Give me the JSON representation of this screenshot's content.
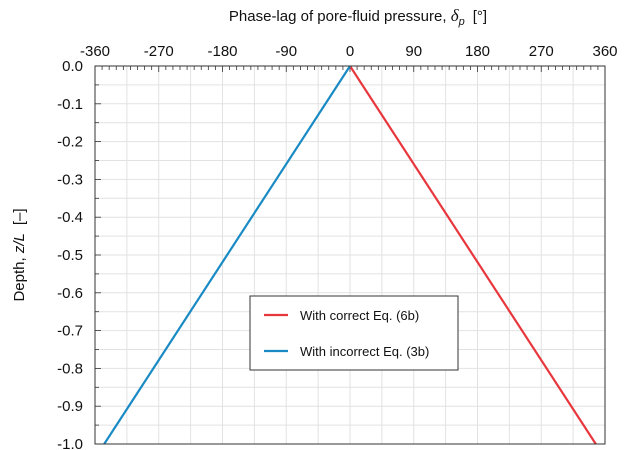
{
  "chart_data": {
    "type": "line",
    "xlabel_prefix": "Phase-lag of pore-fluid pressure, ",
    "xlabel_symbol": "δ",
    "xlabel_subscript": "p",
    "xlabel_unit": "[°]",
    "ylabel_prefix": "Depth, ",
    "ylabel_symbol": "z/L",
    "ylabel_unit": "[–]",
    "xlim": [
      -360,
      360
    ],
    "ylim": [
      -1.0,
      0.0
    ],
    "x_ticks": [
      -360,
      -270,
      -180,
      -90,
      0,
      90,
      180,
      270,
      360
    ],
    "x_tick_labels": [
      "-360",
      "-270",
      "-180",
      "-90",
      "0",
      "90",
      "180",
      "270",
      "360"
    ],
    "y_ticks": [
      0.0,
      -0.1,
      -0.2,
      -0.3,
      -0.4,
      -0.5,
      -0.6,
      -0.7,
      -0.8,
      -0.9,
      -1.0
    ],
    "y_tick_labels": [
      "0.0",
      "-0.1",
      "-0.2",
      "-0.3",
      "-0.4",
      "-0.5",
      "-0.6",
      "-0.7",
      "-0.8",
      "-0.9",
      "-1.0"
    ],
    "grid": true,
    "legend_position": "center",
    "series": [
      {
        "name": "With correct Eq. (6b)",
        "color": "#e8373c",
        "x": [
          0,
          347
        ],
        "y": [
          0.0,
          -1.0
        ]
      },
      {
        "name": "With incorrect Eq. (3b)",
        "color": "#1a8ac4",
        "x": [
          0,
          -347
        ],
        "y": [
          0.0,
          -1.0
        ]
      }
    ]
  }
}
